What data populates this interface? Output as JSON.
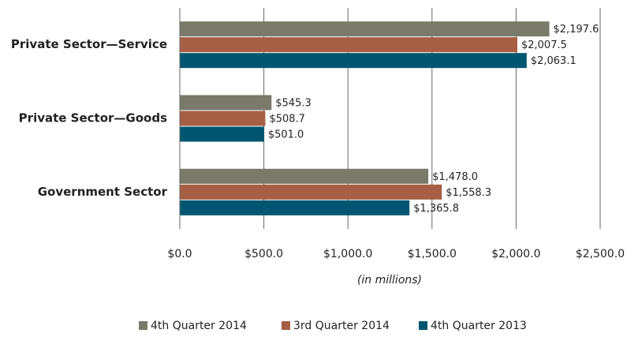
{
  "chart_data": {
    "type": "bar",
    "orientation": "horizontal",
    "categories": [
      "Private Sector—Service",
      "Private Sector—Goods",
      "Government Sector"
    ],
    "series": [
      {
        "name": "4th Quarter 2014",
        "color": "#7a7a6a",
        "values": [
          2197.6,
          545.3,
          1478.0
        ],
        "value_labels": [
          "$2,197.6",
          "$545.3",
          "$1,478.0"
        ]
      },
      {
        "name": "3rd Quarter 2014",
        "color": "#a65f45",
        "values": [
          2007.5,
          508.7,
          1558.3
        ],
        "value_labels": [
          "$2,007.5",
          "$508.7",
          "$1,558.3"
        ]
      },
      {
        "name": "4th Quarter 2013",
        "color": "#005670",
        "values": [
          2063.1,
          501.0,
          1365.8
        ],
        "value_labels": [
          "$2,063.1",
          "$501.0",
          "$1,365.8"
        ]
      }
    ],
    "x_label": "(in millions)",
    "xlim": [
      0,
      2500
    ],
    "xticks": [
      {
        "value": 0,
        "label": "$0.0"
      },
      {
        "value": 500,
        "label": "$500.0"
      },
      {
        "value": 1000,
        "label": "$1,000.0"
      },
      {
        "value": 1500,
        "label": "$1,500.0"
      },
      {
        "value": 2000,
        "label": "$2,000.0"
      },
      {
        "value": 2500,
        "label": "$2,500.0"
      }
    ],
    "grid": true,
    "legend": "bottom"
  }
}
